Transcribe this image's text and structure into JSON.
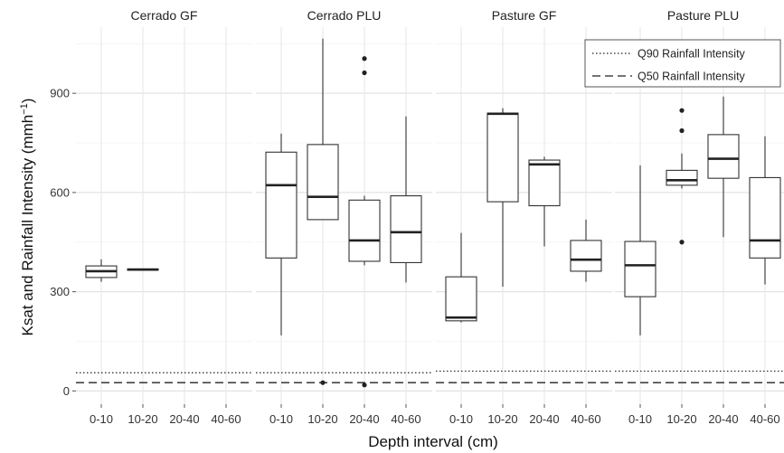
{
  "chart_data": {
    "type": "boxplot",
    "xlabel": "Depth interval (cm)",
    "ylabel": "Ksat and Rainfall Intensity (mm h⁻¹)",
    "ylabel_main": "Ksat and Rainfall Intensity (mmh",
    "ylabel_sup": "−1",
    "ylabel_end": ")",
    "ylim": [
      -40,
      1100
    ],
    "yticks": [
      0,
      300,
      600,
      900
    ],
    "categories": [
      "0-10",
      "10-20",
      "20-40",
      "40-60"
    ],
    "grid": true,
    "legend": {
      "position": "top-right",
      "entries": [
        {
          "label": "Q90 Rainfall Intensity",
          "linestyle": "dotted"
        },
        {
          "label": "Q50 Rainfall Intensity",
          "linestyle": "dashed"
        }
      ]
    },
    "panels": [
      {
        "title": "Cerrado GF",
        "q90": 55,
        "q50": 25,
        "boxes": [
          {
            "cat": "0-10",
            "low": 330,
            "q1": 343,
            "median": 362,
            "q3": 378,
            "high": 398,
            "outliers": []
          },
          {
            "cat": "10-20",
            "low": 365,
            "q1": 365,
            "median": 367,
            "q3": 369,
            "high": 369,
            "outliers": []
          }
        ]
      },
      {
        "title": "Cerrado PLU",
        "q90": 55,
        "q50": 25,
        "boxes": [
          {
            "cat": "0-10",
            "low": 168,
            "q1": 402,
            "median": 622,
            "q3": 722,
            "high": 778,
            "outliers": []
          },
          {
            "cat": "10-20",
            "low": 518,
            "q1": 518,
            "median": 587,
            "q3": 745,
            "high": 1065,
            "outliers": [
              25
            ]
          },
          {
            "cat": "20-40",
            "low": 380,
            "q1": 392,
            "median": 455,
            "q3": 577,
            "high": 590,
            "outliers": [
              1005,
              962,
              18
            ]
          },
          {
            "cat": "40-60",
            "low": 328,
            "q1": 388,
            "median": 480,
            "q3": 590,
            "high": 830,
            "outliers": []
          }
        ]
      },
      {
        "title": "Pasture GF",
        "q90": 60,
        "q50": 25,
        "boxes": [
          {
            "cat": "0-10",
            "low": 207,
            "q1": 212,
            "median": 222,
            "q3": 345,
            "high": 478,
            "outliers": []
          },
          {
            "cat": "10-20",
            "low": 315,
            "q1": 572,
            "median": 838,
            "q3": 840,
            "high": 855,
            "outliers": []
          },
          {
            "cat": "20-40",
            "low": 437,
            "q1": 560,
            "median": 685,
            "q3": 698,
            "high": 708,
            "outliers": []
          },
          {
            "cat": "40-60",
            "low": 330,
            "q1": 362,
            "median": 397,
            "q3": 455,
            "high": 518,
            "outliers": []
          }
        ]
      },
      {
        "title": "Pasture PLU",
        "q90": 60,
        "q50": 25,
        "boxes": [
          {
            "cat": "0-10",
            "low": 168,
            "q1": 285,
            "median": 380,
            "q3": 452,
            "high": 682,
            "outliers": []
          },
          {
            "cat": "10-20",
            "low": 612,
            "q1": 622,
            "median": 637,
            "q3": 667,
            "high": 718,
            "outliers": [
              848,
              787,
              450
            ]
          },
          {
            "cat": "20-40",
            "low": 465,
            "q1": 643,
            "median": 702,
            "q3": 775,
            "high": 890,
            "outliers": []
          },
          {
            "cat": "40-60",
            "low": 322,
            "q1": 402,
            "median": 455,
            "q3": 645,
            "high": 770,
            "outliers": []
          }
        ]
      }
    ]
  }
}
